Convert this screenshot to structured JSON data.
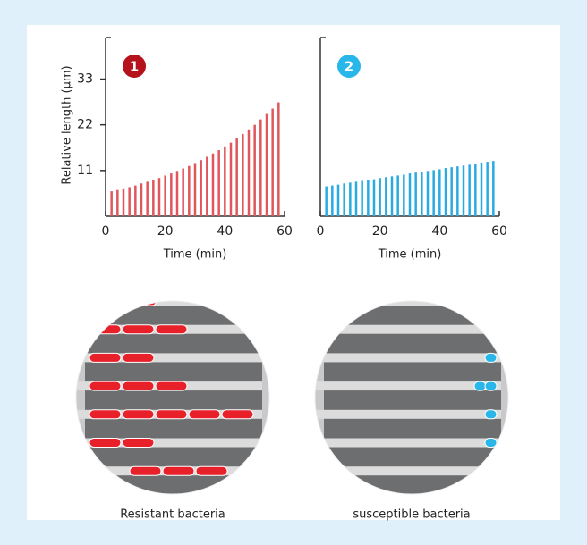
{
  "chart_data": [
    {
      "type": "bar",
      "badge": "1",
      "badge_color": "#b5121b",
      "color": "#e0575b",
      "xlabel": "Time (min)",
      "ylabel": "Relative length (µm)",
      "caption": "Resistant bacteria",
      "x": [
        2,
        4,
        6,
        8,
        10,
        12,
        14,
        16,
        18,
        20,
        22,
        24,
        26,
        28,
        30,
        32,
        34,
        36,
        38,
        40,
        42,
        44,
        46,
        48,
        50,
        52,
        54,
        56,
        58
      ],
      "values": [
        6.0,
        6.3,
        6.7,
        7.0,
        7.4,
        7.9,
        8.3,
        8.8,
        9.2,
        9.8,
        10.3,
        10.9,
        11.5,
        12.1,
        12.8,
        13.5,
        14.3,
        15.1,
        15.9,
        16.8,
        17.7,
        18.7,
        19.8,
        20.9,
        22.0,
        23.3,
        24.6,
        25.9,
        27.4
      ],
      "xlim": [
        0,
        60
      ],
      "xticks": [
        0,
        20,
        40,
        60
      ],
      "ylim": [
        0,
        43
      ],
      "yticks": [
        11,
        22,
        33
      ]
    },
    {
      "type": "bar",
      "badge": "2",
      "badge_color": "#29b6e8",
      "color": "#29abe2",
      "xlabel": "Time (min)",
      "caption": "susceptible bacteria",
      "x": [
        2,
        4,
        6,
        8,
        10,
        12,
        14,
        16,
        18,
        20,
        22,
        24,
        26,
        28,
        30,
        32,
        34,
        36,
        38,
        40,
        42,
        44,
        46,
        48,
        50,
        52,
        54,
        56,
        58
      ],
      "values": [
        7.2,
        7.4,
        7.6,
        7.9,
        8.1,
        8.3,
        8.5,
        8.7,
        8.9,
        9.2,
        9.4,
        9.6,
        9.8,
        10.0,
        10.3,
        10.5,
        10.7,
        10.9,
        11.1,
        11.3,
        11.6,
        11.8,
        12.0,
        12.2,
        12.4,
        12.7,
        12.9,
        13.1,
        13.3
      ],
      "xlim": [
        0,
        60
      ],
      "xticks": [
        0,
        20,
        40,
        60
      ],
      "ylim": [
        0,
        43
      ]
    }
  ]
}
